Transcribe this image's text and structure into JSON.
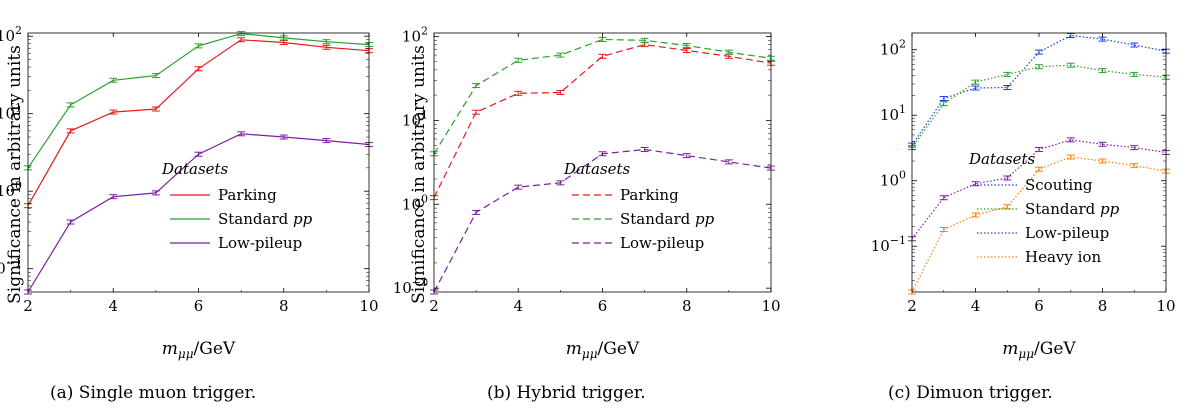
{
  "chart_data": [
    {
      "type": "line",
      "caption": "(a) Single muon trigger.",
      "xlabel": "m_μμ/GeV",
      "ylabel": "Significance in arbitrary units",
      "xlim": [
        2,
        10
      ],
      "ylim": [
        0.05,
        110
      ],
      "yscale": "log",
      "x_ticks": [
        "2",
        "4",
        "6",
        "8",
        "10"
      ],
      "y_ticks": [
        {
          "label": "10",
          "exp": "2"
        },
        {
          "label": "10",
          "exp": "1"
        },
        {
          "label": "10",
          "exp": "0"
        },
        {
          "label": "10",
          "exp": "−1"
        }
      ],
      "legend_title": "Datasets",
      "legend_position": "center",
      "x": [
        2,
        3,
        4,
        5,
        6,
        7,
        8,
        9,
        10
      ],
      "series": [
        {
          "name": "Parking",
          "label_italic": "",
          "color": "#e41a1c",
          "dash": "solid",
          "values": [
            0.65,
            6.0,
            10.5,
            11.5,
            38,
            90,
            83,
            72,
            65
          ]
        },
        {
          "name": "Standard ",
          "label_italic": "pp",
          "color": "#2ca02c",
          "dash": "solid",
          "values": [
            2.0,
            13,
            27,
            31,
            75,
            108,
            95,
            85,
            78
          ]
        },
        {
          "name": "Low-pileup",
          "label_italic": "",
          "color": "#7b1fa2",
          "dash": "solid",
          "values": [
            0.05,
            0.4,
            0.85,
            0.95,
            3.0,
            5.5,
            5.0,
            4.5,
            4.0
          ]
        }
      ]
    },
    {
      "type": "line",
      "caption": "(b) Hybrid trigger.",
      "xlabel": "m_μμ/GeV",
      "ylabel": "Significance in arbitrary units",
      "xlim": [
        2,
        10
      ],
      "ylim": [
        0.09,
        110
      ],
      "yscale": "log",
      "x_ticks": [
        "2",
        "4",
        "6",
        "8",
        "10"
      ],
      "y_ticks": [
        {
          "label": "10",
          "exp": "2"
        },
        {
          "label": "10",
          "exp": "1"
        },
        {
          "label": "10",
          "exp": "0"
        },
        {
          "label": "10",
          "exp": "−1"
        }
      ],
      "legend_title": "Datasets",
      "legend_position": "center",
      "x": [
        2,
        3,
        4,
        5,
        6,
        7,
        8,
        9,
        10
      ],
      "series": [
        {
          "name": "Parking",
          "label_italic": "",
          "color": "#e41a1c",
          "dash": "dashed",
          "values": [
            1.2,
            12.5,
            21,
            21.5,
            58,
            80,
            68,
            58,
            48
          ]
        },
        {
          "name": "Standard ",
          "label_italic": "pp",
          "color": "#2ca02c",
          "dash": "dashed",
          "values": [
            4.0,
            26,
            52,
            60,
            92,
            90,
            78,
            65,
            55
          ]
        },
        {
          "name": "Low-pileup",
          "label_italic": "",
          "color": "#7b1fa2",
          "dash": "dashed",
          "values": [
            0.09,
            0.8,
            1.6,
            1.8,
            4.0,
            4.5,
            3.8,
            3.2,
            2.7
          ]
        }
      ]
    },
    {
      "type": "line",
      "caption": "(c) Dimuon trigger.",
      "xlabel": "m_μμ/GeV",
      "ylabel": "",
      "xlim": [
        2,
        10
      ],
      "ylim": [
        0.02,
        180
      ],
      "yscale": "log",
      "x_ticks": [
        "2",
        "4",
        "6",
        "8",
        "10"
      ],
      "y_ticks": [
        {
          "label": "10",
          "exp": "2"
        },
        {
          "label": "10",
          "exp": "1"
        },
        {
          "label": "10",
          "exp": "0"
        },
        {
          "label": "10",
          "exp": "−1"
        }
      ],
      "legend_title": "Datasets",
      "legend_position": "center",
      "x": [
        2,
        3,
        4,
        5,
        6,
        7,
        8,
        9,
        10
      ],
      "series": [
        {
          "name": "Scouting",
          "label_italic": "",
          "color": "#1f3fe0",
          "dash": "dotted",
          "values": [
            3.5,
            18,
            26,
            26.5,
            92,
            165,
            145,
            118,
            95
          ]
        },
        {
          "name": "Standard ",
          "label_italic": "pp",
          "color": "#2ca02c",
          "dash": "dotted",
          "values": [
            3.2,
            15,
            32,
            42,
            55,
            58,
            48,
            42,
            38
          ]
        },
        {
          "name": "Low-pileup",
          "label_italic": "",
          "color": "#7b1fa2",
          "dash": "dotted",
          "values": [
            0.13,
            0.55,
            0.9,
            1.1,
            3.0,
            4.2,
            3.6,
            3.2,
            2.7
          ]
        },
        {
          "name": "Heavy ion",
          "label_italic": "",
          "color": "#ff7f0e",
          "dash": "dotted",
          "values": [
            0.02,
            0.18,
            0.3,
            0.4,
            1.5,
            2.3,
            2.0,
            1.7,
            1.4
          ]
        }
      ]
    }
  ]
}
